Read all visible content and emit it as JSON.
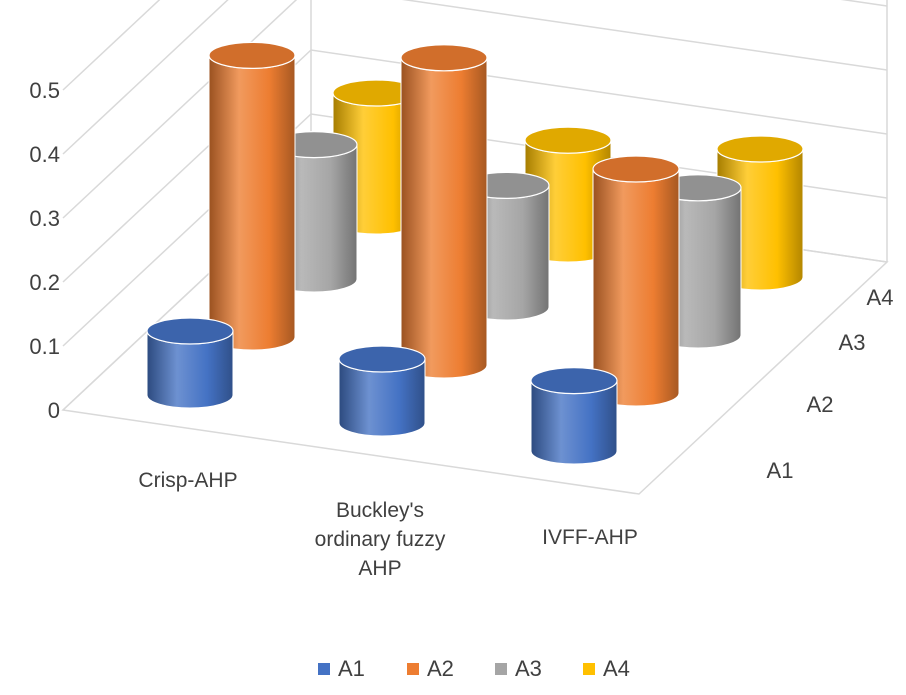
{
  "chart_data": {
    "type": "bar",
    "subtype": "3d-cylinder",
    "title": "",
    "xlabel": "",
    "ylabel": "",
    "ylim": [
      0,
      0.5
    ],
    "y_ticks": [
      "0",
      "0.1",
      "0.2",
      "0.3",
      "0.4",
      "0.5"
    ],
    "categories": [
      "Crisp-AHP",
      "Buckley's ordinary fuzzy AHP",
      "IVFF-AHP"
    ],
    "category_label_lines": [
      [
        "Crisp-AHP"
      ],
      [
        "Buckley's",
        "ordinary fuzzy",
        "AHP"
      ],
      [
        "IVFF-AHP"
      ]
    ],
    "series": [
      {
        "name": "A1",
        "color": "#4472C4",
        "values": [
          0.1,
          0.1,
          0.11
        ]
      },
      {
        "name": "A2",
        "color": "#ED7D31",
        "values": [
          0.44,
          0.48,
          0.35
        ]
      },
      {
        "name": "A3",
        "color": "#A5A5A5",
        "values": [
          0.21,
          0.19,
          0.23
        ]
      },
      {
        "name": "A4",
        "color": "#FFC000",
        "values": [
          0.2,
          0.17,
          0.2
        ]
      }
    ],
    "grid": true,
    "legend": "bottom"
  }
}
